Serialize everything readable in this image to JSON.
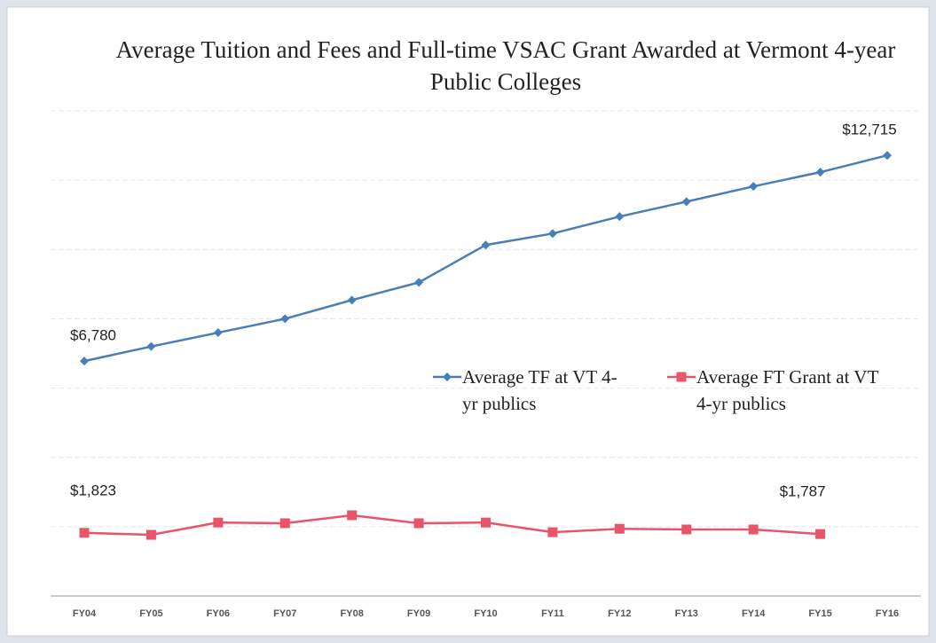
{
  "chart_data": {
    "type": "line",
    "title": "Average Tuition and Fees and Full-time VSAC Grant Awarded at Vermont 4-year Public Colleges",
    "categories": [
      "FY04",
      "FY05",
      "FY06",
      "FY07",
      "FY08",
      "FY09",
      "FY10",
      "FY11",
      "FY12",
      "FY13",
      "FY14",
      "FY15",
      "FY16"
    ],
    "series": [
      {
        "name": "Average TF at VT 4-yr publics",
        "color": "#4a7ebb",
        "marker": "diamond",
        "values": [
          6780,
          7200,
          7600,
          8000,
          8540,
          9050,
          10130,
          10460,
          10950,
          11380,
          11820,
          12230,
          12715
        ],
        "value_labels": [
          "$6,780",
          null,
          null,
          null,
          null,
          null,
          null,
          null,
          null,
          null,
          null,
          null,
          "$12,715"
        ]
      },
      {
        "name": "Average FT Grant at VT 4-yr publics",
        "color": "#e8546a",
        "marker": "square",
        "values": [
          1823,
          1765,
          2120,
          2100,
          2330,
          2100,
          2120,
          1840,
          1940,
          1920,
          1920,
          1787,
          null
        ],
        "value_labels": [
          "$1,823",
          null,
          null,
          null,
          null,
          null,
          null,
          null,
          null,
          null,
          null,
          "$1,787",
          null
        ]
      }
    ],
    "ylim": [
      0,
      14000
    ],
    "yticks": [
      0,
      2000,
      4000,
      6000,
      8000,
      10000,
      12000,
      14000
    ],
    "grid": true
  }
}
